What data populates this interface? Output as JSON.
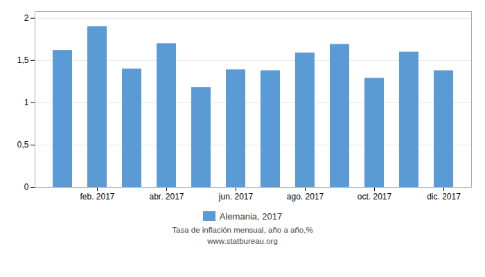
{
  "chart_data": {
    "type": "bar",
    "categories": [
      null,
      "feb. 2017",
      null,
      "abr. 2017",
      null,
      "jun. 2017",
      null,
      "ago. 2017",
      null,
      "oct. 2017",
      null,
      "dic. 2017"
    ],
    "series": [
      {
        "name": "Alemania, 2017",
        "color": "#5b9bd5",
        "values": [
          1.62,
          1.9,
          1.4,
          1.7,
          1.18,
          1.39,
          1.38,
          1.59,
          1.69,
          1.29,
          1.6,
          1.38
        ]
      }
    ],
    "ylim": [
      0,
      2.08
    ],
    "yticks": [
      0,
      {
        "value": 0.5,
        "label": "0,5"
      },
      1,
      {
        "value": 1.5,
        "label": "1,5"
      },
      2
    ],
    "grid": true,
    "legend": "bottom",
    "annotations": [
      "Tasa de inflación mensual, año a año,%",
      "www.statbureau.org"
    ]
  }
}
